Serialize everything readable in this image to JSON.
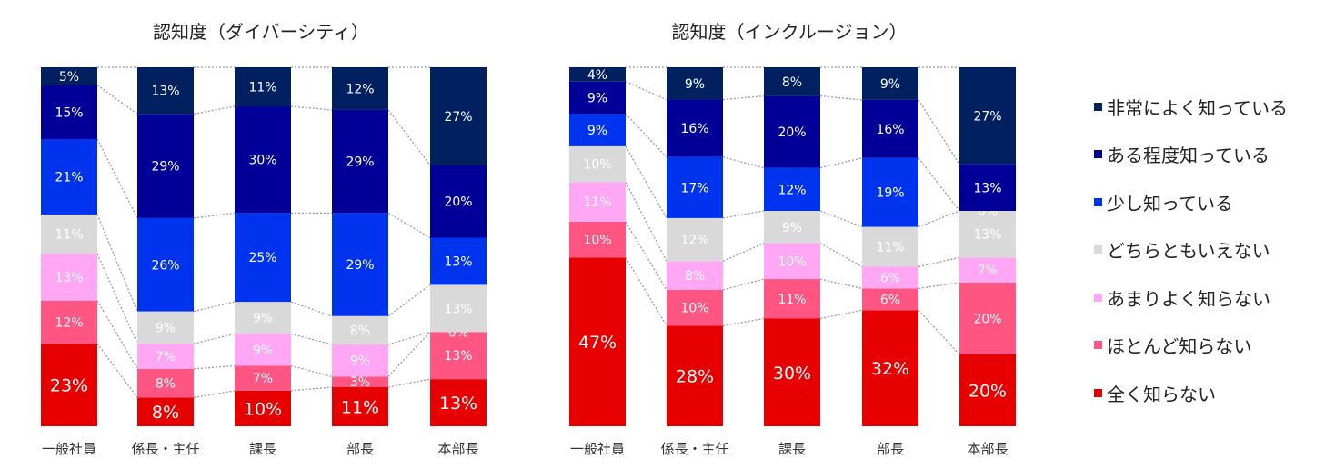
{
  "colors": {
    "全く知らない": "#E60000",
    "ほとんど知らない": "#FF5582",
    "あまりよく知らない": "#FFA6F5",
    "どちらともいえない": "#D9D9D9",
    "少し知っている": "#0033EE",
    "ある程度知っている": "#000099",
    "非常によく知っている": "#002060"
  },
  "legend": [
    "非常によく知っている",
    "ある程度知っている",
    "少し知っている",
    "どちらともいえない",
    "あまりよく知らない",
    "ほとんど知らない",
    "全く知らない"
  ],
  "chart_data": [
    {
      "type": "bar",
      "stacked": true,
      "normalized_100": true,
      "title": "認知度（ダイバーシティ）",
      "categories": [
        "一般社員",
        "係長・主任",
        "課長",
        "部長",
        "本部長"
      ],
      "series": [
        {
          "name": "全く知らない",
          "values": [
            23,
            8,
            10,
            11,
            13
          ],
          "labels": [
            "23%",
            "8%",
            "10%",
            "11%",
            "13%"
          ]
        },
        {
          "name": "ほとんど知らない",
          "values": [
            12,
            8,
            7,
            3,
            13
          ],
          "labels": [
            "12%",
            "8%",
            "7%",
            "3%",
            "13%"
          ]
        },
        {
          "name": "あまりよく知らない",
          "values": [
            13,
            7,
            9,
            9,
            0
          ],
          "labels": [
            "13%",
            "7%",
            "9%",
            "9%",
            "0%"
          ]
        },
        {
          "name": "どちらともいえない",
          "values": [
            11,
            9,
            9,
            8,
            13
          ],
          "labels": [
            "11%",
            "9%",
            "9%",
            "8%",
            "13%"
          ]
        },
        {
          "name": "少し知っている",
          "values": [
            21,
            26,
            25,
            29,
            13
          ],
          "labels": [
            "21%",
            "26%",
            "25%",
            "29%",
            "13%"
          ]
        },
        {
          "name": "ある程度知っている",
          "values": [
            15,
            29,
            30,
            29,
            20
          ],
          "labels": [
            "15%",
            "29%",
            "30%",
            "29%",
            "20%"
          ]
        },
        {
          "name": "非常によく知っている",
          "values": [
            5,
            13,
            11,
            12,
            27
          ],
          "labels": [
            "5%",
            "13%",
            "11%",
            "12%",
            "27%"
          ]
        }
      ],
      "series_lines": true
    },
    {
      "type": "bar",
      "stacked": true,
      "normalized_100": true,
      "title": "認知度（インクルージョン）",
      "categories": [
        "一般社員",
        "係長・主任",
        "課長",
        "部長",
        "本部長"
      ],
      "series": [
        {
          "name": "全く知らない",
          "values": [
            47,
            28,
            30,
            32,
            20
          ],
          "labels": [
            "47%",
            "28%",
            "30%",
            "32%",
            "20%"
          ]
        },
        {
          "name": "ほとんど知らない",
          "values": [
            10,
            10,
            11,
            6,
            20
          ],
          "labels": [
            "10%",
            "10%",
            "11%",
            "6%",
            "20%"
          ]
        },
        {
          "name": "あまりよく知らない",
          "values": [
            11,
            8,
            10,
            6,
            7
          ],
          "labels": [
            "11%",
            "8%",
            "10%",
            "6%",
            "7%"
          ]
        },
        {
          "name": "どちらともいえない",
          "values": [
            10,
            12,
            9,
            11,
            13
          ],
          "labels": [
            "10%",
            "12%",
            "9%",
            "11%",
            "13%"
          ]
        },
        {
          "name": "少し知っている",
          "values": [
            9,
            17,
            12,
            19,
            0
          ],
          "labels": [
            "9%",
            "17%",
            "12%",
            "19%",
            "0%"
          ]
        },
        {
          "name": "ある程度知っている",
          "values": [
            9,
            16,
            20,
            16,
            13
          ],
          "labels": [
            "9%",
            "16%",
            "20%",
            "16%",
            "13%"
          ]
        },
        {
          "name": "非常によく知っている",
          "values": [
            4,
            9,
            8,
            9,
            27
          ],
          "labels": [
            "4%",
            "9%",
            "8%",
            "9%",
            "27%"
          ]
        }
      ],
      "series_lines": true
    }
  ]
}
